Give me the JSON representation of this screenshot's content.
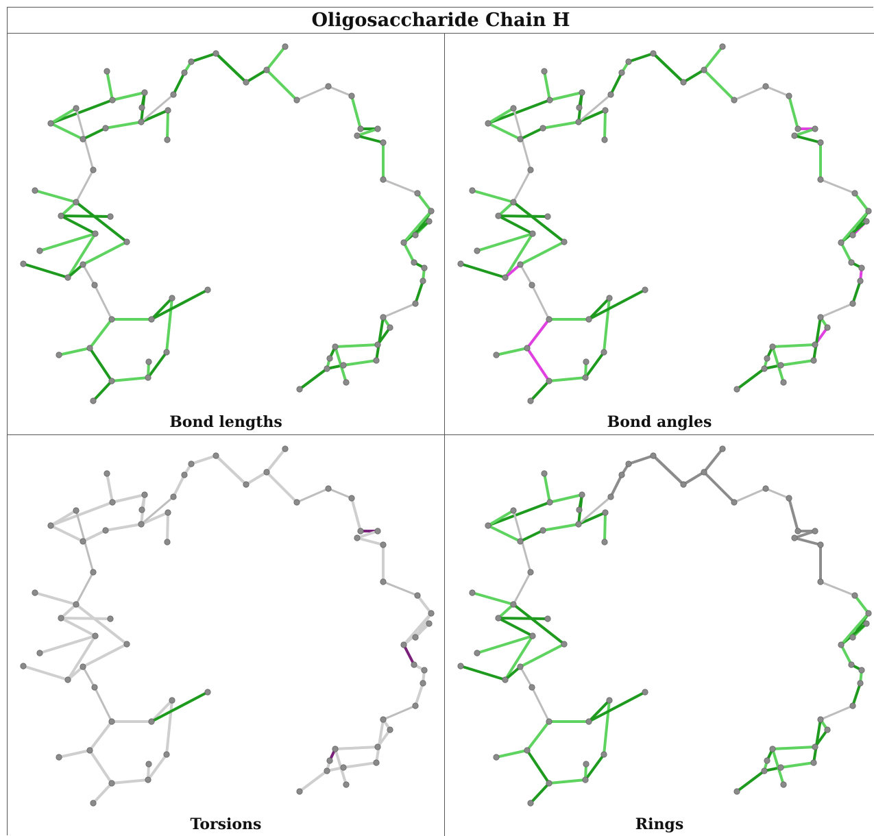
{
  "title": "Oligosaccharide Chain H",
  "panels": [
    {
      "id": "bond-lengths",
      "caption": "Bond lengths",
      "mode": "lengths"
    },
    {
      "id": "bond-angles",
      "caption": "Bond angles",
      "mode": "angles"
    },
    {
      "id": "torsions",
      "caption": "Torsions",
      "mode": "torsions"
    },
    {
      "id": "rings",
      "caption": "Rings",
      "mode": "rings"
    }
  ],
  "colors": {
    "green_dark": "#1e9b1e",
    "green_light": "#5fd35f",
    "grey_link": "#bdbdbd",
    "grey_bond": "#8c8c8c",
    "grey_light": "#cfcfcf",
    "magenta": "#e040e0",
    "purple": "#7a1f7a",
    "atom": "#8a8a8a"
  }
}
